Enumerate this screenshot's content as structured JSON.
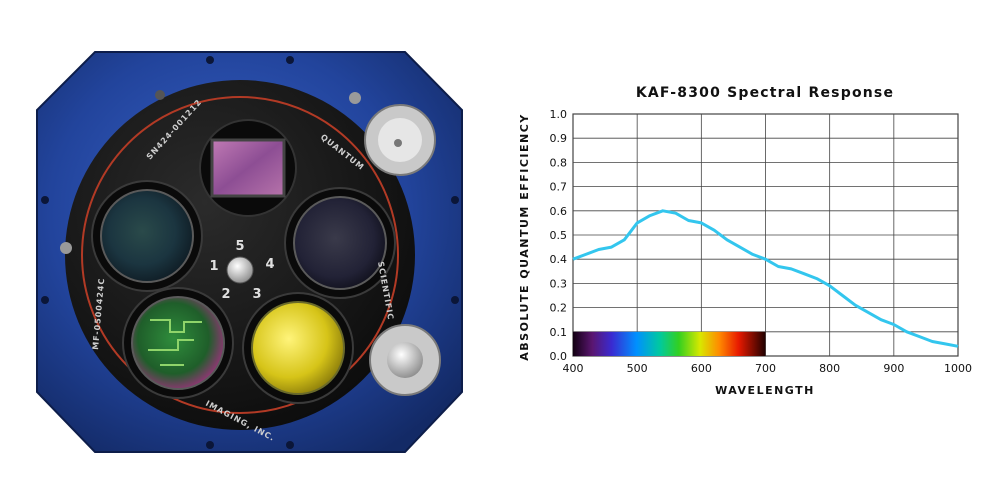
{
  "camera": {
    "serial_label": "SN424-001212",
    "brand_top": "QUANTUM",
    "brand_side": "SCIENTIFIC",
    "brand_bottom": "IMAGING, INC.",
    "model_label": "MF-0500424C",
    "slot_numbers": [
      "5",
      "4",
      "3",
      "2",
      "1"
    ],
    "colors": {
      "body": "#1f3f95",
      "plate": "#171717",
      "accent_ring": "#b23a25"
    }
  },
  "chart_data": {
    "type": "line",
    "title": "KAF-8300 Spectral Response",
    "xlabel": "Wavelength",
    "ylabel": "Absolute Quantum Efficiency",
    "xlim": [
      400,
      1000
    ],
    "ylim": [
      0.0,
      1.0
    ],
    "xticks": [
      400,
      500,
      600,
      700,
      800,
      900,
      1000
    ],
    "yticks": [
      "0.0",
      "0.1",
      "0.2",
      "0.3",
      "0.4",
      "0.5",
      "0.6",
      "0.7",
      "0.8",
      "0.9",
      "1.0"
    ],
    "grid": true,
    "line_color": "#33c6ee",
    "spectrum_band": {
      "x_range": [
        400,
        700
      ],
      "y_range": [
        0.0,
        0.1
      ]
    },
    "series": [
      {
        "x": [
          400,
          420,
          440,
          460,
          480,
          500,
          520,
          540,
          560,
          580,
          600,
          620,
          640,
          660,
          680,
          700,
          720,
          740,
          760,
          780,
          800,
          820,
          840,
          860,
          880,
          900,
          920,
          940,
          960,
          980,
          1000
        ],
        "y": [
          0.4,
          0.42,
          0.44,
          0.45,
          0.48,
          0.55,
          0.58,
          0.6,
          0.59,
          0.56,
          0.55,
          0.52,
          0.48,
          0.45,
          0.42,
          0.4,
          0.37,
          0.36,
          0.34,
          0.32,
          0.29,
          0.25,
          0.21,
          0.18,
          0.15,
          0.13,
          0.1,
          0.08,
          0.06,
          0.05,
          0.04
        ]
      }
    ]
  }
}
